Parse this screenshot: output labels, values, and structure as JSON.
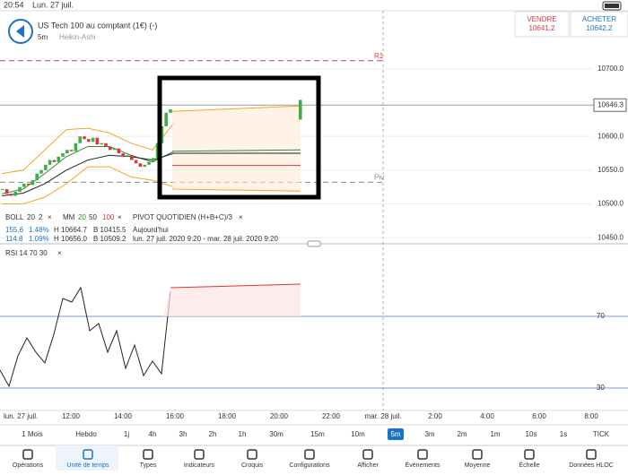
{
  "status_bar": {
    "time": "20:54",
    "date": "Lun. 27 juil."
  },
  "header": {
    "instrument": "US Tech 100 au comptant (1€) (-)",
    "timeframe": "5m",
    "chart_style": "Heikin-Ashi",
    "sell_label": "VENDRE",
    "sell_price": "10641.2",
    "buy_label": "ACHETER",
    "buy_price": "10642.2"
  },
  "price_chart": {
    "ylim": [
      10441,
      10786
    ],
    "yticks": [
      {
        "value": 10700,
        "label": "10700.0"
      },
      {
        "value": 10600,
        "label": "10600.0"
      },
      {
        "value": 10550,
        "label": "10550.0"
      },
      {
        "value": 10500,
        "label": "10500.0"
      },
      {
        "value": 10450,
        "label": "10450.0"
      }
    ],
    "current_price": {
      "value": 10646.3,
      "label": "10646.3"
    },
    "levels": [
      {
        "name": "R1",
        "value": 10712,
        "color": "#d9383a"
      },
      {
        "name": "Piv",
        "value": 10532,
        "color": "#888888"
      }
    ],
    "closes": [
      10522,
      10515,
      10512,
      10518,
      10525,
      10530,
      10528,
      10535,
      10545,
      10550,
      10558,
      10565,
      10562,
      10570,
      10575,
      10580,
      10578,
      10590,
      10600,
      10596,
      10592,
      10598,
      10588,
      10590,
      10585,
      10580,
      10582,
      10575,
      10570,
      10572,
      10565,
      10560,
      10555,
      10558,
      10562,
      10568,
      10590,
      10615,
      10635,
      10640
    ],
    "last_candle": {
      "open": 10625,
      "close": 10654
    },
    "bands": [
      {
        "color": "#f5a623",
        "values": [
          10545,
          10550,
          10580,
          10610,
          10612,
          10605,
          10590,
          10580,
          10620
        ]
      },
      {
        "color": "#f5a623",
        "values": [
          10500,
          10500,
          10510,
          10530,
          10555,
          10555,
          10540,
          10535,
          10525
        ]
      },
      {
        "color": "#2e8b2e",
        "values": [
          10515,
          10522,
          10545,
          10570,
          10585,
          10585,
          10572,
          10562,
          10578
        ]
      },
      {
        "color": "#222222",
        "values": [
          10512,
          10516,
          10530,
          10550,
          10565,
          10572,
          10570,
          10565,
          10575
        ]
      }
    ],
    "projections": [
      {
        "color": "#f5a623",
        "values": [
          10637,
          10645
        ]
      },
      {
        "color": "#2e8b2e",
        "values": [
          10578,
          10580
        ]
      },
      {
        "color": "#222222",
        "values": [
          10575,
          10575
        ]
      },
      {
        "color": "#d9383a",
        "values": [
          10557,
          10557
        ]
      },
      {
        "color": "#f5a623",
        "values": [
          10522,
          10519
        ]
      }
    ]
  },
  "indicators": {
    "boll": [
      "BOLL",
      "20",
      "2"
    ],
    "mm": [
      "MM",
      "20",
      "50",
      "100"
    ],
    "pivot": "PIVOT QUOTIDIEN (H+B+C)/3",
    "row1": [
      "155.6",
      "1.48%",
      "H 10664.7",
      "B 10415.5",
      "Aujourd'hui"
    ],
    "row2": [
      "114.8",
      "1.09%",
      "H 10656.0",
      "B 10509.2",
      "lun. 27 juil. 2020 9:20 - mar. 28 juil. 2020 9:20"
    ]
  },
  "rsi_chart": {
    "label": "RSI 14 70 30",
    "ylim": [
      17.5,
      104
    ],
    "yticks": [
      70,
      30
    ],
    "values": [
      40,
      31,
      48,
      58,
      50,
      44,
      60,
      80,
      78,
      86,
      62,
      66,
      50,
      62,
      41,
      54,
      37,
      45,
      38,
      84
    ],
    "projection": [
      86,
      88
    ]
  },
  "time_axis": [
    "lun. 27 juil.",
    "12:00",
    "14:00",
    "16:00",
    "18:00",
    "20:00",
    "22:00",
    "mar. 28 juil.",
    "2:00",
    "4:00",
    "6:00",
    "8:00"
  ],
  "timeframes": [
    "1 Mois",
    "Hebdo",
    "1j",
    "4h",
    "3h",
    "2h",
    "1h",
    "30m",
    "15m",
    "10m",
    "5m",
    "3m",
    "2m",
    "1m",
    "10s",
    "1s",
    "TICK"
  ],
  "toolbar": [
    "Opérations",
    "Unité de temps",
    "Types",
    "Indicateurs",
    "Croquis",
    "Configurations",
    "Afficher",
    "Événements",
    "Moyenne",
    "Échelle",
    "Données HLOC"
  ]
}
